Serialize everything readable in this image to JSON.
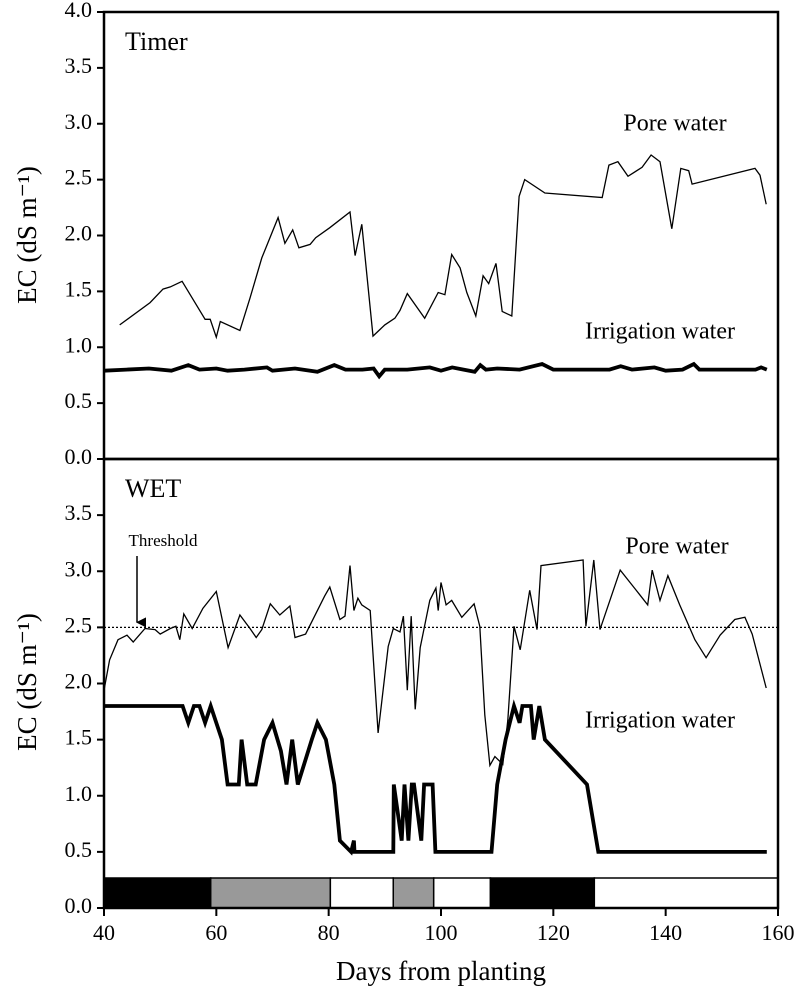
{
  "chart_data": [
    {
      "type": "line",
      "title": "Timer",
      "ylabel": "EC (dS m⁻¹)",
      "xlim": [
        40,
        160
      ],
      "ylim": [
        0,
        4
      ],
      "yticks": [
        {
          "value": 0,
          "label": "0.0"
        },
        0.5,
        {
          "value": 1,
          "label": "1.0"
        },
        1.5,
        {
          "value": 2,
          "label": "2.0"
        },
        2.5,
        {
          "value": 3,
          "label": "3.0"
        },
        3.5,
        {
          "value": 4,
          "label": "4.0"
        }
      ],
      "series": [
        {
          "name": "Pore water",
          "color": "#000000",
          "x": [
            42.8,
            48.2,
            50.5,
            51.8,
            53.9,
            58,
            58.9,
            60,
            60.7,
            64.2,
            66,
            68.1,
            71,
            72.2,
            73.6,
            74.7,
            76.7,
            77.7,
            80.2,
            83.8,
            84.7,
            85.9,
            87.9,
            90,
            91.8,
            92.7,
            94,
            97.1,
            99.5,
            100.7,
            101.9,
            103.4,
            104.6,
            106.2,
            107.5,
            108.5,
            109.8,
            110.9,
            112.6,
            113.9,
            114.9,
            118.5,
            128.7,
            129.9,
            131.5,
            133.3,
            135.8,
            137.4,
            139,
            141.1,
            142.7,
            144.1,
            144.7,
            155.9,
            156.8,
            157.9
          ],
          "values": [
            1.2,
            1.4,
            1.52,
            1.54,
            1.59,
            1.25,
            1.25,
            1.09,
            1.23,
            1.15,
            1.44,
            1.8,
            2.16,
            1.93,
            2.05,
            1.89,
            1.92,
            1.98,
            2.07,
            2.21,
            1.82,
            2.1,
            1.1,
            1.2,
            1.26,
            1.33,
            1.48,
            1.26,
            1.49,
            1.47,
            1.83,
            1.71,
            1.49,
            1.28,
            1.64,
            1.57,
            1.75,
            1.32,
            1.28,
            2.35,
            2.5,
            2.38,
            2.34,
            2.63,
            2.66,
            2.53,
            2.61,
            2.72,
            2.66,
            2.06,
            2.6,
            2.58,
            2.46,
            2.6,
            2.54,
            2.28
          ]
        },
        {
          "name": "Irrigation water",
          "color": "#000000",
          "x": [
            40,
            44,
            48,
            52,
            55,
            57,
            60,
            62,
            65,
            69,
            70,
            74,
            78,
            81,
            83,
            86,
            88,
            89,
            90,
            94,
            98,
            100,
            102,
            104,
            106,
            107,
            108,
            110,
            114,
            118,
            120,
            130,
            132,
            134,
            138,
            140,
            143,
            145,
            146,
            156,
            157,
            158
          ],
          "values": [
            0.79,
            0.8,
            0.81,
            0.79,
            0.84,
            0.8,
            0.81,
            0.79,
            0.8,
            0.82,
            0.79,
            0.81,
            0.78,
            0.84,
            0.8,
            0.8,
            0.81,
            0.74,
            0.8,
            0.8,
            0.82,
            0.79,
            0.82,
            0.8,
            0.78,
            0.84,
            0.8,
            0.81,
            0.8,
            0.85,
            0.8,
            0.8,
            0.83,
            0.8,
            0.82,
            0.79,
            0.8,
            0.85,
            0.8,
            0.8,
            0.82,
            0.8
          ]
        }
      ]
    },
    {
      "type": "line",
      "title": "WET",
      "ylabel": "EC (dS m⁻¹)",
      "xlabel": "Days from planting",
      "xlim": [
        40,
        160
      ],
      "ylim": [
        0,
        4
      ],
      "xticks": [
        40,
        60,
        80,
        100,
        120,
        140,
        160
      ],
      "yticks": [
        {
          "value": 0,
          "label": "0.0"
        },
        0.5,
        {
          "value": 1,
          "label": "1.0"
        },
        1.5,
        {
          "value": 2,
          "label": "2.0"
        },
        2.5,
        {
          "value": 3,
          "label": "3.0"
        },
        3.5
      ],
      "threshold": {
        "value": 2.5,
        "label": "Threshold"
      },
      "phases": [
        {
          "start": 40,
          "end": 59,
          "color": "#000000"
        },
        {
          "start": 59,
          "end": 80.3,
          "color": "#999999"
        },
        {
          "start": 80.3,
          "end": 91.5,
          "color": "#ffffff"
        },
        {
          "start": 91.5,
          "end": 98.7,
          "color": "#999999"
        },
        {
          "start": 98.7,
          "end": 108.8,
          "color": "#ffffff"
        },
        {
          "start": 108.8,
          "end": 127.3,
          "color": "#000000"
        },
        {
          "start": 127.3,
          "end": 160,
          "color": "#ffffff"
        }
      ],
      "series": [
        {
          "name": "Pore water",
          "color": "#000000",
          "x": [
            40,
            41,
            42.5,
            44.1,
            45.2,
            47.3,
            49.1,
            50,
            51.8,
            52.8,
            53.5,
            54.2,
            55.7,
            57.6,
            60,
            62.1,
            64.2,
            66,
            67.1,
            68.1,
            69.6,
            71.3,
            73.1,
            74,
            75.9,
            79.3,
            80.2,
            82,
            82.9,
            83.8,
            84.5,
            85.2,
            85.9,
            87.4,
            88.8,
            90.6,
            91.5,
            92.7,
            93.3,
            94,
            94.7,
            95.4,
            96.3,
            98,
            99.1,
            99.5,
            100,
            100.9,
            101.9,
            103.7,
            105.9,
            106.9,
            107.8,
            108.7,
            109.6,
            111,
            111.9,
            113,
            114.1,
            115.8,
            117.1,
            117.8,
            125.3,
            125.8,
            127.2,
            128.3,
            131.9,
            135.4,
            136.8,
            137.6,
            139,
            140.4,
            142.5,
            145.2,
            147.2,
            149.7,
            152.3,
            154.1,
            155.4,
            157.9
          ],
          "values": [
            1.94,
            2.21,
            2.39,
            2.43,
            2.37,
            2.49,
            2.48,
            2.44,
            2.49,
            2.51,
            2.39,
            2.62,
            2.49,
            2.67,
            2.82,
            2.32,
            2.61,
            2.49,
            2.41,
            2.48,
            2.71,
            2.61,
            2.69,
            2.41,
            2.44,
            2.78,
            2.86,
            2.57,
            2.6,
            3.05,
            2.65,
            2.76,
            2.7,
            2.65,
            1.56,
            2.33,
            2.49,
            2.46,
            2.6,
            1.94,
            2.6,
            1.77,
            2.32,
            2.74,
            2.85,
            2.65,
            2.9,
            2.7,
            2.74,
            2.59,
            2.71,
            2.51,
            1.72,
            1.27,
            1.35,
            1.28,
            1.67,
            2.51,
            2.3,
            2.83,
            2.48,
            3.05,
            3.1,
            2.51,
            3.1,
            2.48,
            3.01,
            2.79,
            2.7,
            3.01,
            2.74,
            2.96,
            2.7,
            2.39,
            2.23,
            2.43,
            2.57,
            2.59,
            2.44,
            1.96
          ]
        },
        {
          "name": "Irrigation water",
          "color": "#000000",
          "x": [
            40,
            54,
            55,
            56,
            57,
            58,
            59,
            60,
            61,
            62,
            64,
            64.5,
            65.5,
            67,
            68.5,
            70,
            71.5,
            72.5,
            73.5,
            74.5,
            77,
            78,
            79.5,
            81,
            82,
            84,
            84.5,
            84.6,
            91.5,
            91.6,
            93,
            93.5,
            94.2,
            94.8,
            95.2,
            96.5,
            97,
            98.5,
            99,
            109,
            110,
            111.5,
            113,
            114,
            114.5,
            116,
            116.5,
            117.5,
            118.5,
            126,
            128,
            158
          ],
          "values": [
            1.8,
            1.8,
            1.65,
            1.8,
            1.8,
            1.65,
            1.8,
            1.65,
            1.5,
            1.1,
            1.1,
            1.5,
            1.1,
            1.1,
            1.5,
            1.65,
            1.4,
            1.1,
            1.5,
            1.1,
            1.5,
            1.65,
            1.5,
            1.1,
            0.6,
            0.5,
            0.6,
            0.5,
            0.5,
            1.1,
            0.6,
            1.1,
            0.6,
            1.1,
            1.1,
            0.6,
            1.1,
            1.1,
            0.5,
            0.5,
            1.1,
            1.5,
            1.8,
            1.65,
            1.8,
            1.8,
            1.5,
            1.8,
            1.5,
            1.1,
            0.5,
            0.5
          ]
        }
      ]
    }
  ]
}
